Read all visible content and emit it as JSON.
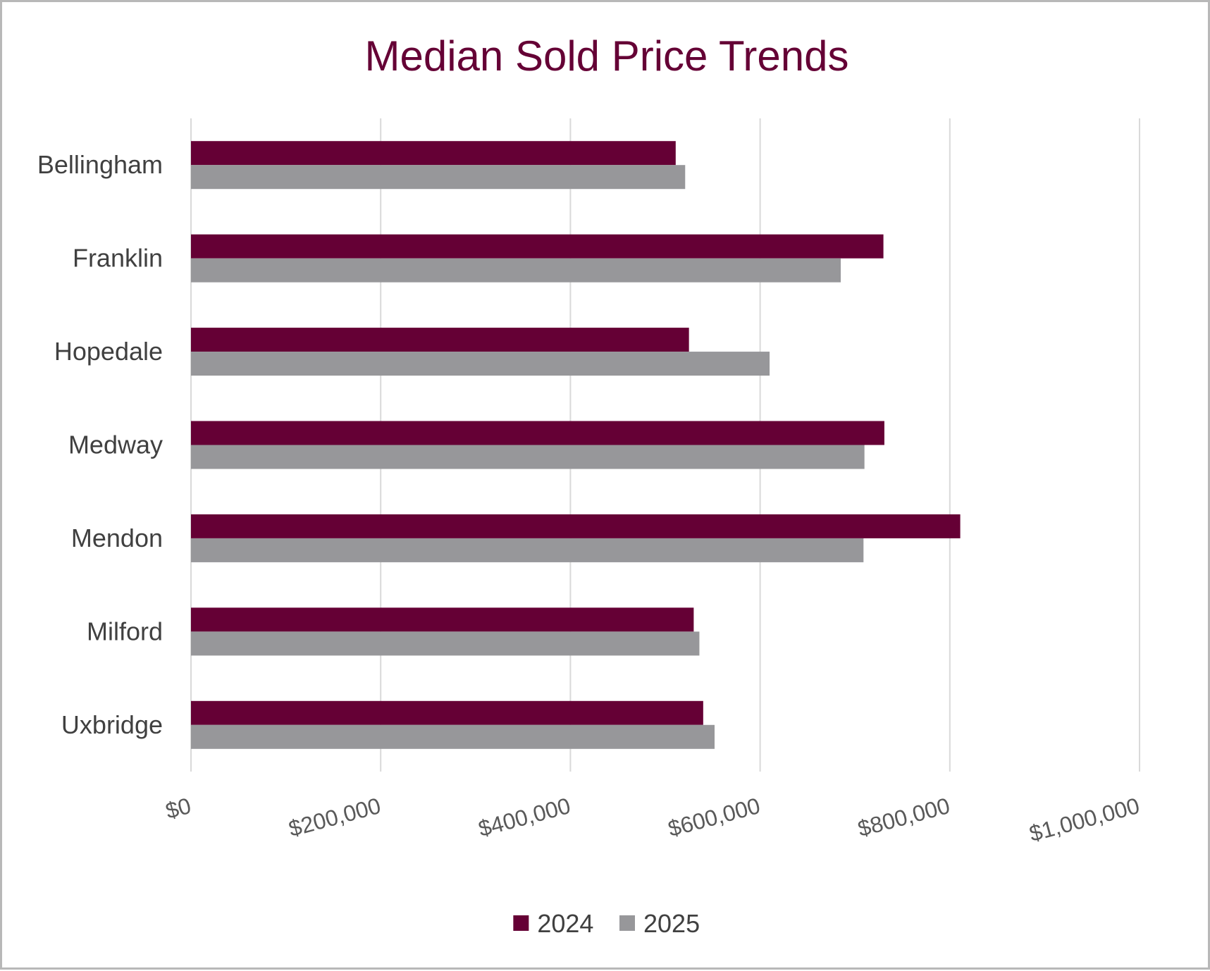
{
  "chart_data": {
    "type": "bar",
    "orientation": "horizontal",
    "title": "Median Sold Price Trends",
    "categories": [
      "Bellingham",
      "Franklin",
      "Hopedale",
      "Medway",
      "Mendon",
      "Milford",
      "Uxbridge"
    ],
    "series": [
      {
        "name": "2024",
        "color": "#650035",
        "values": [
          511000,
          730000,
          525000,
          731000,
          811000,
          530000,
          540000
        ]
      },
      {
        "name": "2025",
        "color": "#97979a",
        "values": [
          521000,
          685000,
          610000,
          710000,
          709000,
          536000,
          552000
        ]
      }
    ],
    "xlim": [
      0,
      1000000
    ],
    "xticks": [
      0,
      200000,
      400000,
      600000,
      800000,
      1000000
    ],
    "tick_labels": [
      "$0",
      "$200,000",
      "$400,000",
      "$600,000",
      "$800,000",
      "$1,000,000"
    ],
    "grid": "vertical",
    "legend": "bottom",
    "xlabel": "",
    "ylabel": ""
  }
}
